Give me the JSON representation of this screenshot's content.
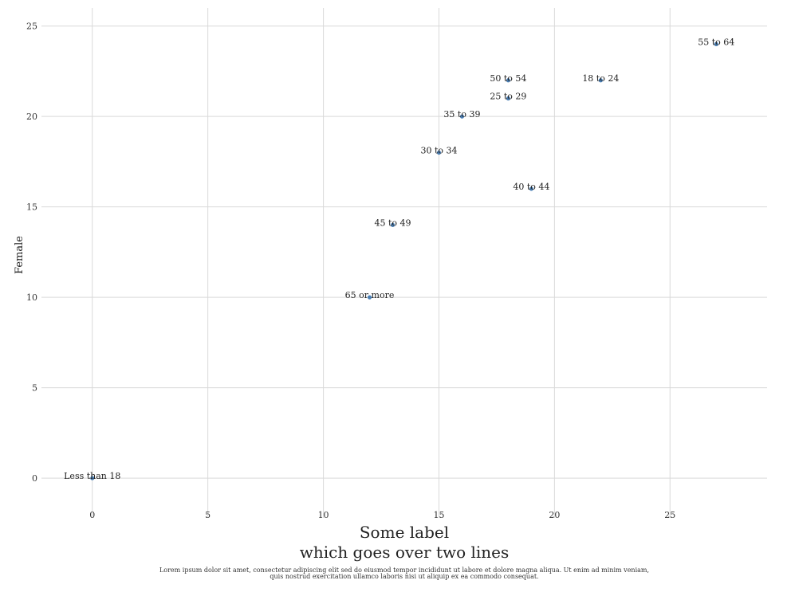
{
  "chart_data": {
    "type": "scatter",
    "title": "",
    "xlabel": [
      "Some label",
      "which goes over two lines"
    ],
    "ylabel": "Female",
    "caption": [
      "Lorem ipsum dolor sit amet, consectetur adipiscing elit sed do eiusmod tempor incididunt ut labore et dolore magna aliqua. Ut enim ad minim veniam,",
      "quis nostrud exercitation ullamco laboris nisi ut aliquip ex ea commodo consequat."
    ],
    "xlim": [
      -2.2,
      29.2
    ],
    "ylim": [
      -2.2,
      26
    ],
    "xticks": [
      0,
      5,
      10,
      15,
      20,
      25
    ],
    "yticks": [
      0,
      5,
      10,
      15,
      20,
      25
    ],
    "grid": true,
    "colors": {
      "point": "#4a7fb5",
      "grid": "#d9d9d9"
    },
    "points": [
      {
        "label": "Less than 18",
        "x": 0,
        "y": 0
      },
      {
        "label": "18 to 24",
        "x": 22,
        "y": 22
      },
      {
        "label": "25 to 29",
        "x": 18,
        "y": 21
      },
      {
        "label": "30 to 34",
        "x": 15,
        "y": 18
      },
      {
        "label": "35 to 39",
        "x": 16,
        "y": 20
      },
      {
        "label": "40 to 44",
        "x": 19,
        "y": 16
      },
      {
        "label": "45 to 49",
        "x": 13,
        "y": 14
      },
      {
        "label": "50 to 54",
        "x": 18,
        "y": 22
      },
      {
        "label": "55 to 64",
        "x": 27,
        "y": 24
      },
      {
        "label": "65 or more",
        "x": 12,
        "y": 10
      }
    ]
  }
}
